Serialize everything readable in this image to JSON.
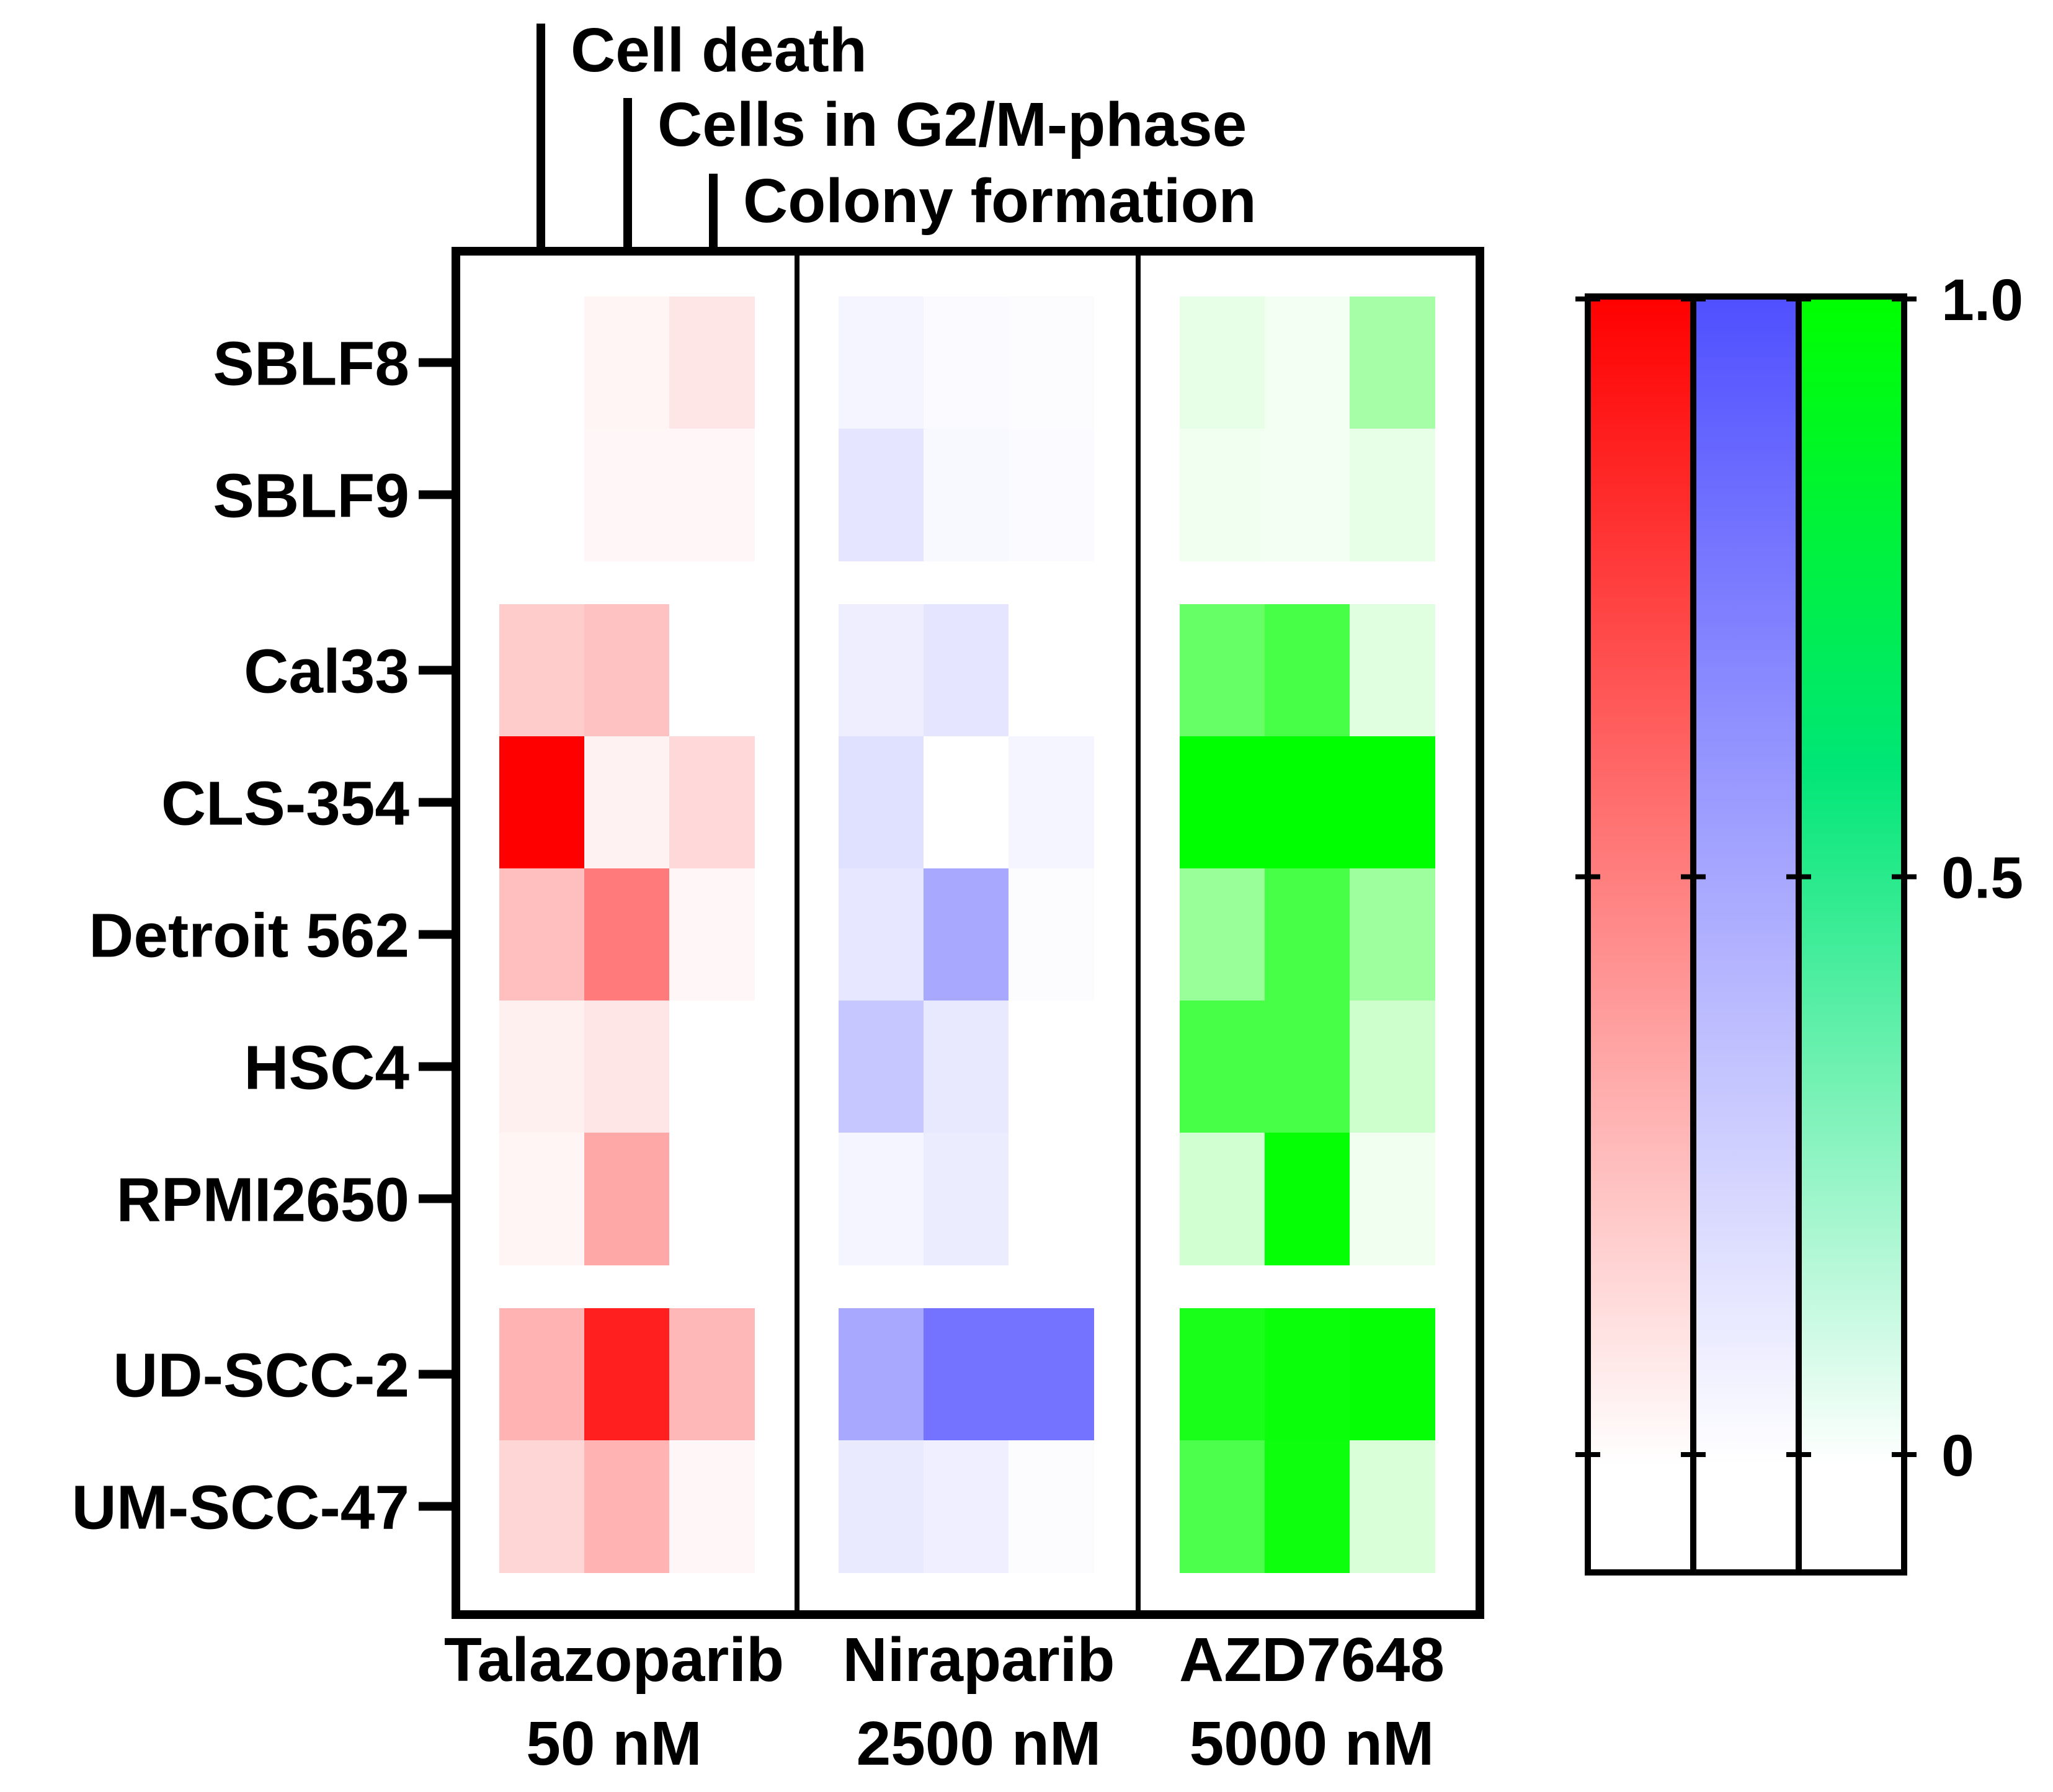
{
  "chart_data": {
    "type": "heatmap",
    "metrics": [
      "Cell death",
      "Cells in G2/M-phase",
      "Colony formation"
    ],
    "drugs": [
      {
        "name": "Talazoparib",
        "dose": "50 nM",
        "color": "#ff0000"
      },
      {
        "name": "Niraparib",
        "dose": "2500 nM",
        "color": "#5050ff"
      },
      {
        "name": "AZD7648",
        "dose": "5000 nM",
        "color": "#00ff00"
      }
    ],
    "groups": [
      [
        "SBLF8",
        "SBLF9"
      ],
      [
        "Cal33",
        "CLS-354",
        "Detroit 562",
        "HSC4",
        "RPMI2650"
      ],
      [
        "UD-SCC-2",
        "UM-SCC-47"
      ]
    ],
    "cell_lines": [
      "SBLF8",
      "SBLF9",
      "Cal33",
      "CLS-354",
      "Detroit 562",
      "HSC4",
      "RPMI2650",
      "UD-SCC-2",
      "UM-SCC-47"
    ],
    "values": {
      "Talazoparib": [
        [
          0.0,
          0.04,
          0.1
        ],
        [
          0.0,
          0.03,
          0.03
        ],
        [
          0.2,
          0.24,
          0.0
        ],
        [
          1.0,
          0.05,
          0.15
        ],
        [
          0.25,
          0.52,
          0.03
        ],
        [
          0.06,
          0.1,
          0.0
        ],
        [
          0.04,
          0.34,
          0.0
        ],
        [
          0.3,
          0.88,
          0.28
        ],
        [
          0.16,
          0.3,
          0.03
        ]
      ],
      "Niraparib": [
        [
          0.06,
          0.03,
          0.02
        ],
        [
          0.15,
          0.04,
          0.03
        ],
        [
          0.1,
          0.15,
          0.0
        ],
        [
          0.18,
          0.0,
          0.06
        ],
        [
          0.14,
          0.5,
          0.02
        ],
        [
          0.32,
          0.13,
          0.0
        ],
        [
          0.06,
          0.11,
          0.0
        ],
        [
          0.5,
          0.8,
          0.8
        ],
        [
          0.12,
          0.09,
          0.02
        ]
      ],
      "AZD7648": [
        [
          0.1,
          0.05,
          0.35
        ],
        [
          0.06,
          0.05,
          0.1
        ],
        [
          0.6,
          0.72,
          0.12
        ],
        [
          1.0,
          1.0,
          1.0
        ],
        [
          0.4,
          0.72,
          0.38
        ],
        [
          0.72,
          0.72,
          0.2
        ],
        [
          0.18,
          0.98,
          0.06
        ],
        [
          0.9,
          0.96,
          0.98
        ],
        [
          0.7,
          0.95,
          0.15
        ]
      ]
    },
    "colorbar": {
      "ticks": [
        1.0,
        0.5,
        0
      ],
      "tick_labels": [
        "1.0",
        "0.5",
        "0"
      ],
      "range": [
        0,
        1
      ]
    }
  }
}
